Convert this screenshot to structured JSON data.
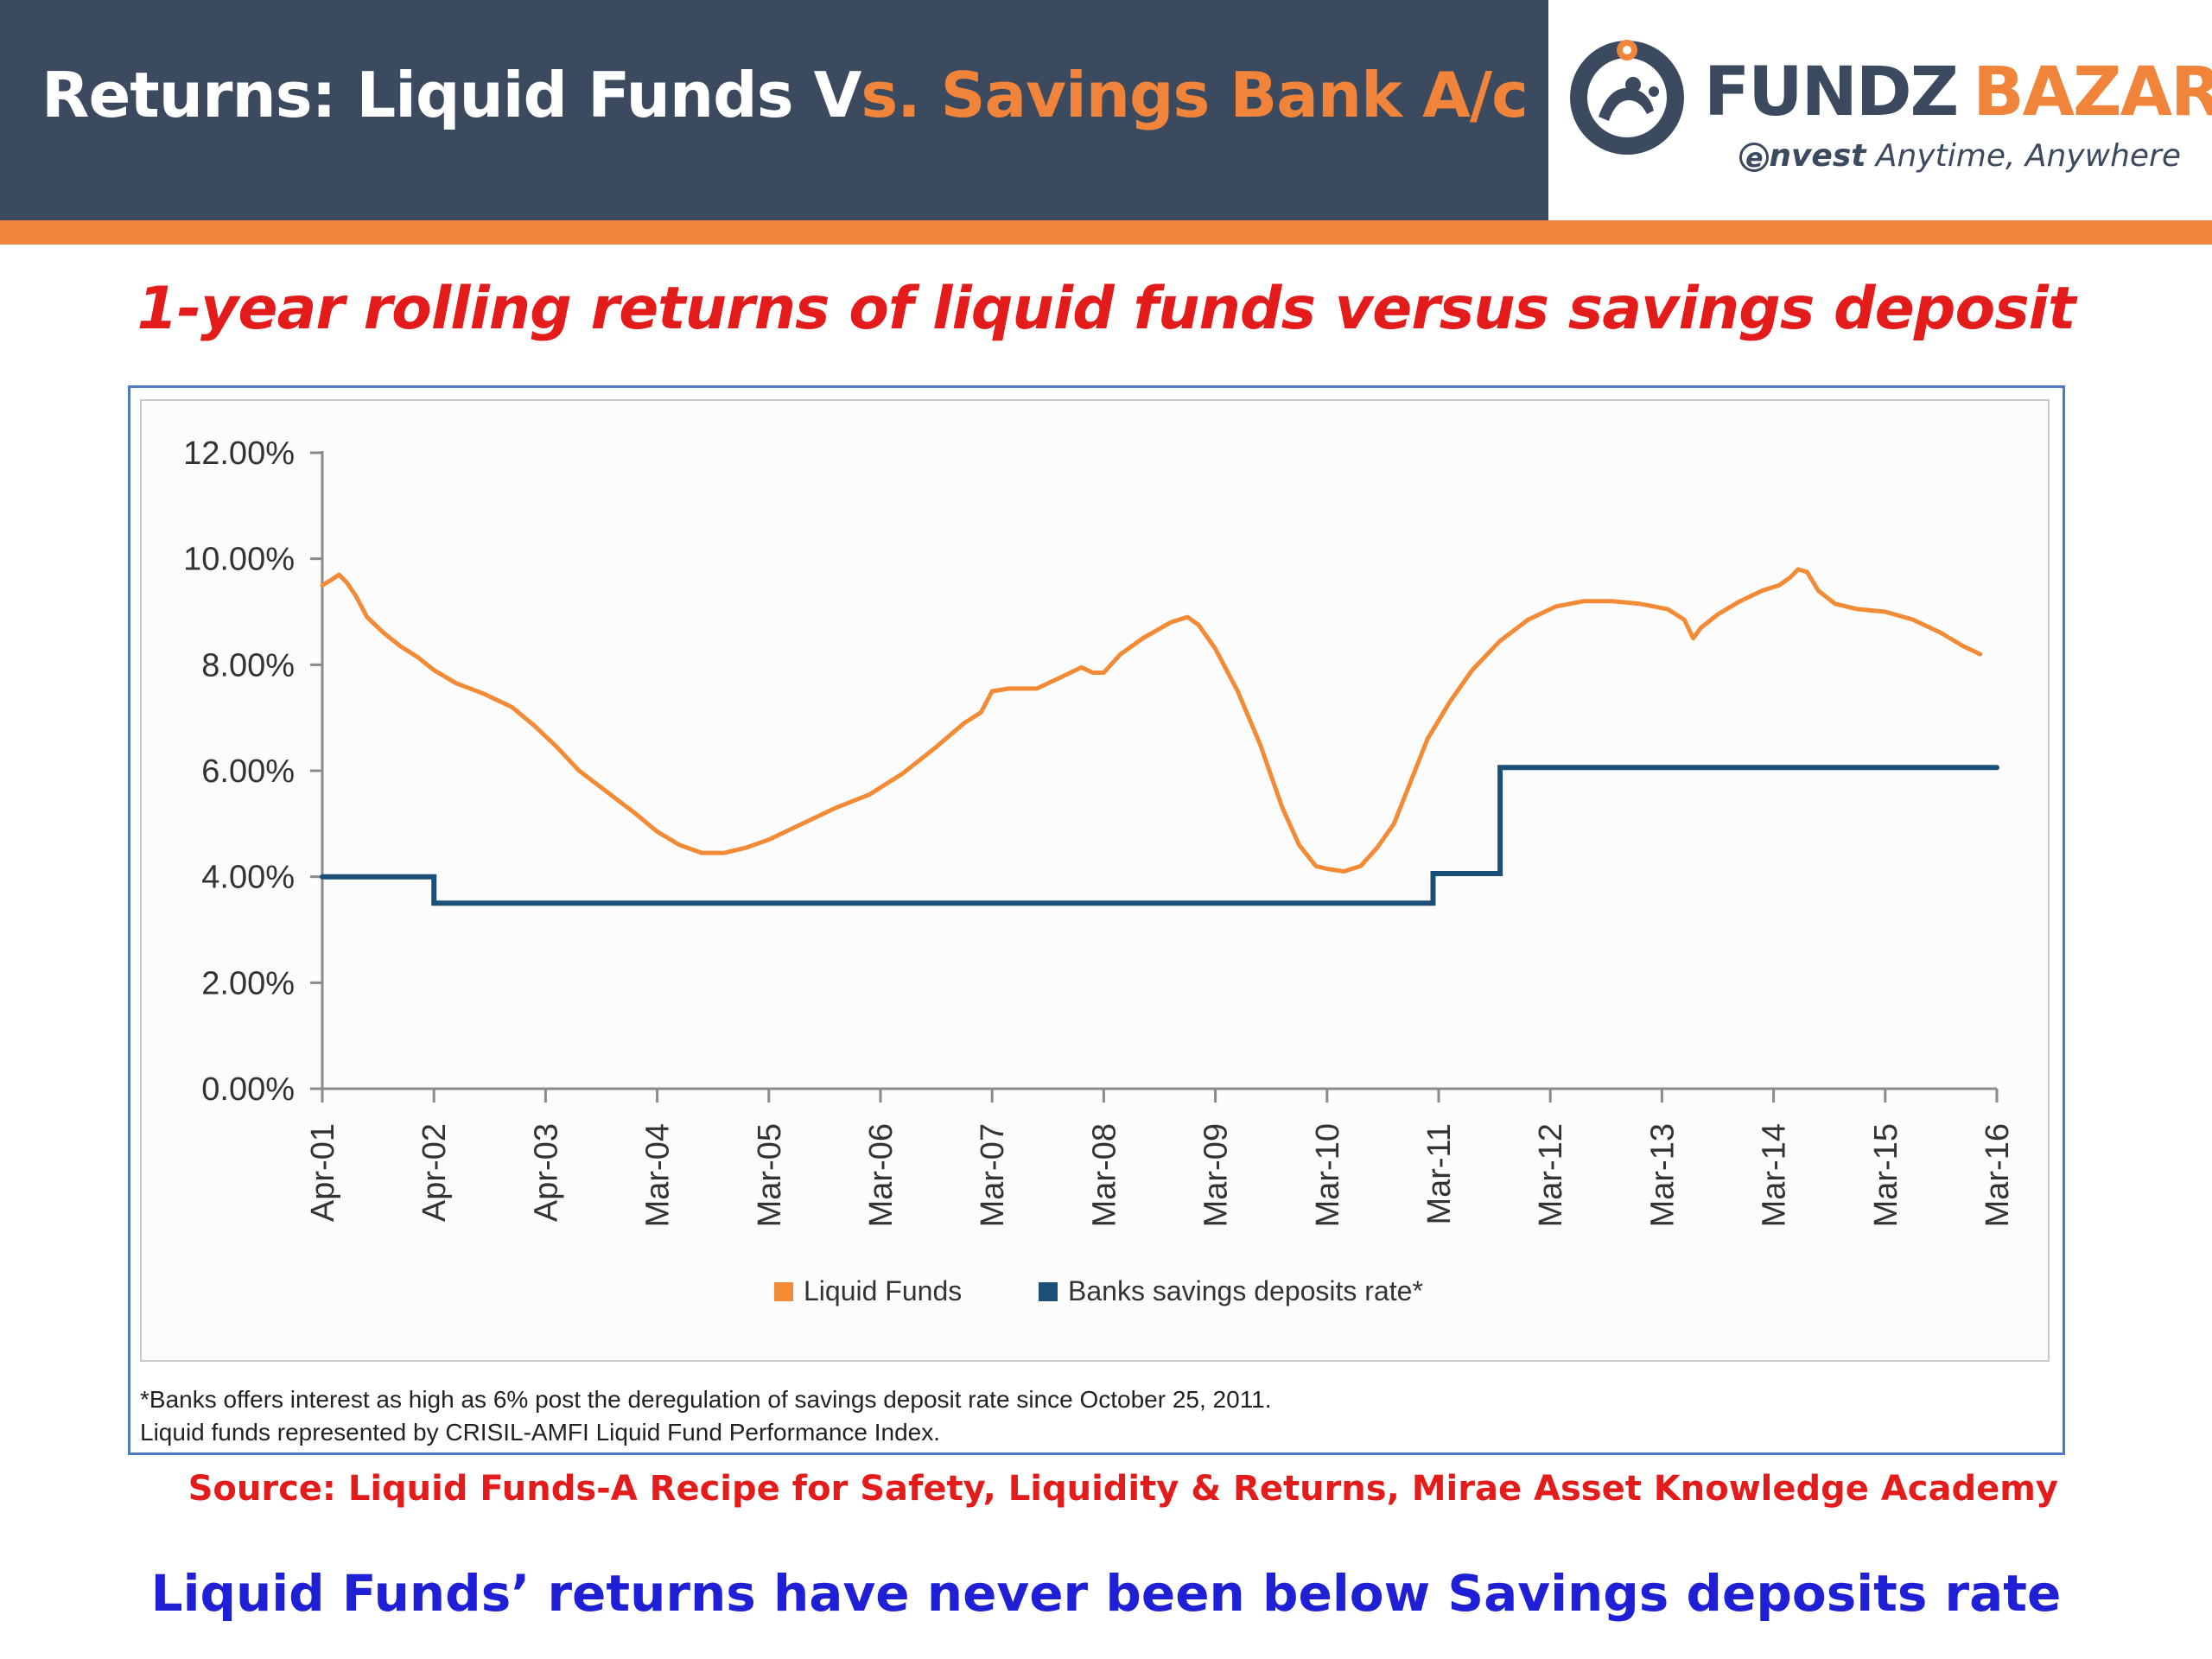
{
  "header": {
    "title_part1": "Returns: Liquid Funds V",
    "title_part2": "s. Savings Bank A/c",
    "brand_part1": "FUNDZ",
    "brand_part2": "BAZAR",
    "tagline_mark": "e",
    "tagline_bold": "nvest",
    "tagline_rest": " Anytime, Anywhere"
  },
  "chart_heading": "1-year rolling returns of liquid funds versus savings deposit",
  "chart_data": {
    "type": "line",
    "title": "",
    "xlabel": "",
    "ylabel": "",
    "categories": [
      "Apr-01",
      "Apr-02",
      "Apr-03",
      "Mar-04",
      "Mar-05",
      "Mar-06",
      "Mar-07",
      "Mar-08",
      "Mar-09",
      "Mar-10",
      "Mar-11",
      "Mar-12",
      "Mar-13",
      "Mar-14",
      "Mar-15",
      "Mar-16"
    ],
    "y_ticks": [
      "0.00%",
      "2.00%",
      "4.00%",
      "6.00%",
      "8.00%",
      "10.00%",
      "12.00%"
    ],
    "ylim": [
      0,
      12
    ],
    "legend_position": "bottom",
    "grid": false,
    "series": [
      {
        "name": "Liquid Funds",
        "color": "#f28a36",
        "step": false,
        "points": [
          [
            0,
            9.5
          ],
          [
            0.08,
            9.6
          ],
          [
            0.15,
            9.7
          ],
          [
            0.22,
            9.55
          ],
          [
            0.3,
            9.3
          ],
          [
            0.4,
            8.9
          ],
          [
            0.55,
            8.6
          ],
          [
            0.7,
            8.35
          ],
          [
            0.85,
            8.15
          ],
          [
            1.0,
            7.9
          ],
          [
            1.2,
            7.65
          ],
          [
            1.45,
            7.45
          ],
          [
            1.7,
            7.2
          ],
          [
            1.9,
            6.85
          ],
          [
            2.1,
            6.45
          ],
          [
            2.3,
            6.0
          ],
          [
            2.55,
            5.6
          ],
          [
            2.8,
            5.2
          ],
          [
            3.0,
            4.85
          ],
          [
            3.2,
            4.6
          ],
          [
            3.4,
            4.45
          ],
          [
            3.6,
            4.45
          ],
          [
            3.8,
            4.55
          ],
          [
            4.0,
            4.7
          ],
          [
            4.3,
            5.0
          ],
          [
            4.6,
            5.3
          ],
          [
            4.9,
            5.55
          ],
          [
            5.2,
            5.95
          ],
          [
            5.5,
            6.45
          ],
          [
            5.75,
            6.9
          ],
          [
            5.9,
            7.1
          ],
          [
            6.0,
            7.5
          ],
          [
            6.15,
            7.55
          ],
          [
            6.4,
            7.55
          ],
          [
            6.6,
            7.75
          ],
          [
            6.8,
            7.95
          ],
          [
            6.9,
            7.85
          ],
          [
            7.0,
            7.85
          ],
          [
            7.15,
            8.2
          ],
          [
            7.35,
            8.5
          ],
          [
            7.6,
            8.8
          ],
          [
            7.75,
            8.9
          ],
          [
            7.85,
            8.75
          ],
          [
            8.0,
            8.3
          ],
          [
            8.2,
            7.5
          ],
          [
            8.4,
            6.5
          ],
          [
            8.6,
            5.3
          ],
          [
            8.75,
            4.6
          ],
          [
            8.9,
            4.2
          ],
          [
            9.0,
            4.15
          ],
          [
            9.15,
            4.1
          ],
          [
            9.3,
            4.2
          ],
          [
            9.45,
            4.55
          ],
          [
            9.6,
            5.0
          ],
          [
            9.75,
            5.8
          ],
          [
            9.9,
            6.6
          ],
          [
            10.1,
            7.3
          ],
          [
            10.3,
            7.9
          ],
          [
            10.55,
            8.45
          ],
          [
            10.8,
            8.85
          ],
          [
            11.05,
            9.1
          ],
          [
            11.3,
            9.2
          ],
          [
            11.55,
            9.2
          ],
          [
            11.8,
            9.15
          ],
          [
            12.05,
            9.05
          ],
          [
            12.2,
            8.85
          ],
          [
            12.28,
            8.5
          ],
          [
            12.35,
            8.7
          ],
          [
            12.5,
            8.95
          ],
          [
            12.7,
            9.2
          ],
          [
            12.9,
            9.4
          ],
          [
            13.05,
            9.5
          ],
          [
            13.15,
            9.65
          ],
          [
            13.22,
            9.8
          ],
          [
            13.3,
            9.75
          ],
          [
            13.4,
            9.4
          ],
          [
            13.55,
            9.15
          ],
          [
            13.75,
            9.05
          ],
          [
            14.0,
            9.0
          ],
          [
            14.25,
            8.85
          ],
          [
            14.5,
            8.6
          ],
          [
            14.7,
            8.35
          ],
          [
            14.85,
            8.2
          ]
        ]
      },
      {
        "name": "Banks savings deposits rate*",
        "color": "#1b4f78",
        "step": true,
        "points": [
          [
            0,
            4.0
          ],
          [
            1.0,
            4.0
          ],
          [
            1.0,
            3.5
          ],
          [
            9.95,
            3.5
          ],
          [
            9.95,
            4.06
          ],
          [
            10.55,
            4.06
          ],
          [
            10.55,
            6.06
          ],
          [
            15.0,
            6.06
          ]
        ]
      }
    ]
  },
  "footnote_line1": "*Banks offers interest as high as 6% post the deregulation of savings deposit rate since October 25, 2011.",
  "footnote_line2": "Liquid funds represented by CRISIL-AMFI Liquid Fund Performance Index.",
  "source": "Source: Liquid Funds-A Recipe for Safety, Liquidity & Returns, Mirae Asset Knowledge Academy",
  "conclusion": "Liquid Funds’ returns have never been below Savings deposits rate"
}
